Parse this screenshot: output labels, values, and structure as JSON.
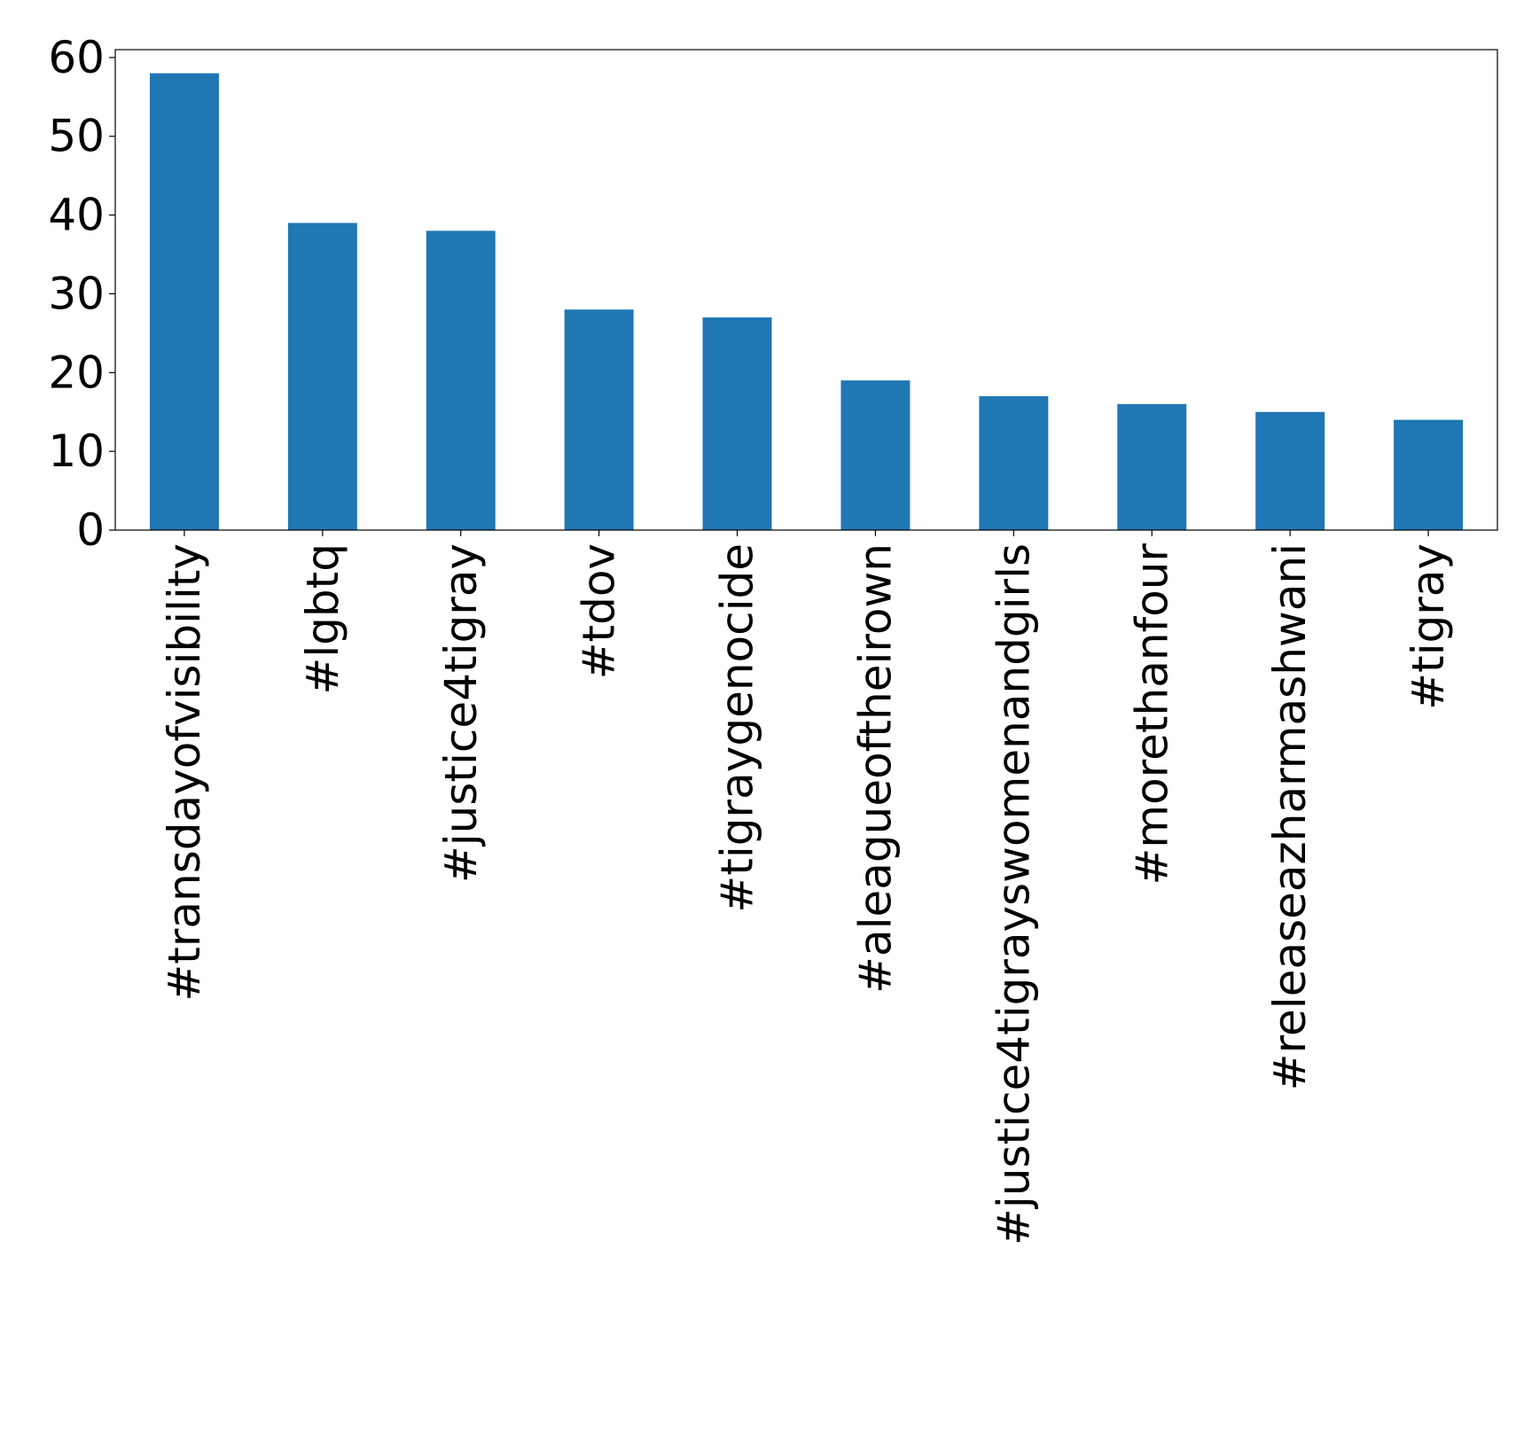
{
  "chart_data": {
    "type": "bar",
    "title": "",
    "xlabel": "",
    "ylabel": "",
    "categories": [
      "#transdayofvisibility",
      "#lgbtq",
      "#justice4tigray",
      "#tdov",
      "#tigraygenocide",
      "#aleagueoftheirown",
      "#justice4tigrayswomenandgirls",
      "#morethanfour",
      "#releaseazharmashwani",
      "#tigray"
    ],
    "values": [
      58,
      39,
      38,
      28,
      27,
      19,
      17,
      16,
      15,
      14
    ],
    "ylim": [
      0,
      61
    ],
    "yticks": [
      0,
      10,
      20,
      30,
      40,
      50,
      60
    ],
    "grid": false,
    "legend": "none",
    "bar_color": "#1f77b4"
  }
}
